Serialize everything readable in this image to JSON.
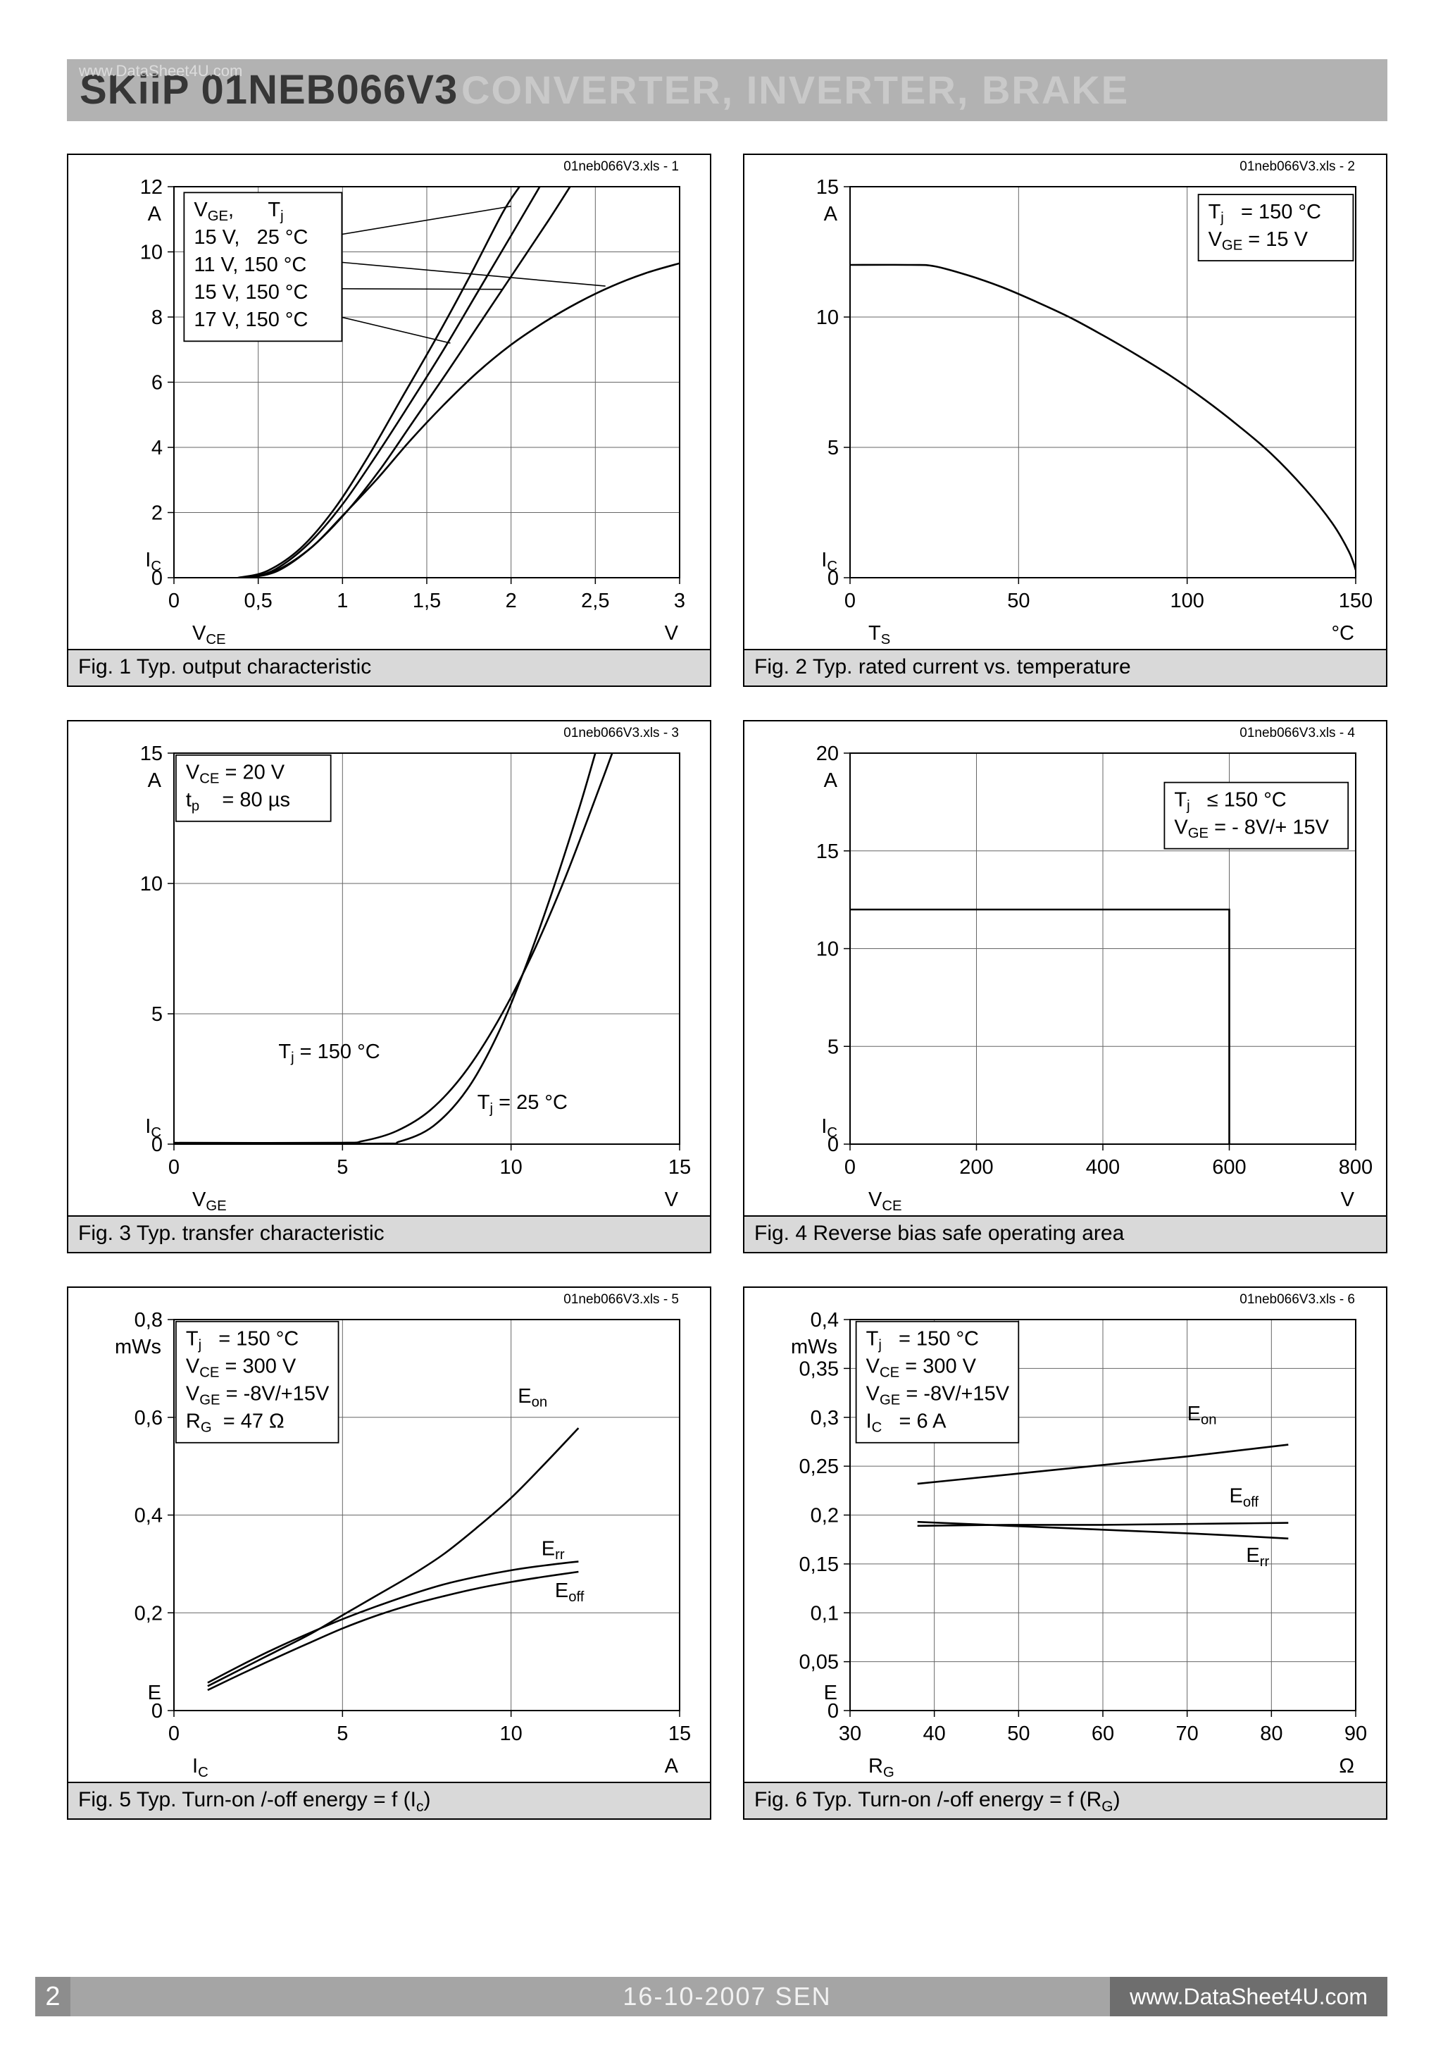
{
  "header": {
    "title": "SKiiP 01NEB066V3",
    "subtitle": "CONVERTER, INVERTER, BRAKE"
  },
  "watermark": "www.DataSheet4U.com",
  "footer": {
    "page_number": "2",
    "date": "16-10-2007  SEN",
    "site": "www.DataSheet4U.com"
  },
  "chart_data": [
    {
      "type": "line",
      "file_label": "01neb066V3.xls - 1",
      "caption": "Fig. 1 Typ. output characteristic",
      "x": {
        "name": "V~CE~",
        "unit": "V",
        "min": 0,
        "max": 3,
        "ticks": [
          0,
          0.5,
          1,
          1.5,
          2,
          2.5,
          3
        ],
        "tick_labels": [
          "0",
          "0,5",
          "1",
          "1,5",
          "2",
          "2,5",
          "3"
        ]
      },
      "y": {
        "name": "I~C~",
        "unit": "A",
        "min": 0,
        "max": 12,
        "ticks": [
          0,
          2,
          4,
          6,
          8,
          10,
          12
        ],
        "tick_labels": [
          "0",
          "2",
          "4",
          "6",
          "8",
          "10",
          "12"
        ]
      },
      "grid": true,
      "info_box": {
        "align": "left",
        "fx": 0.02,
        "fy": 0.015,
        "lines": [
          "V~GE~,      T~j~",
          "15 V,   25 °C",
          "11 V, 150 °C",
          "15 V, 150 °C",
          "17 V, 150 °C"
        ]
      },
      "pointer_lines": [
        {
          "x1": 0.95,
          "y1": 10.5,
          "x2": 2.0,
          "y2": 11.4
        },
        {
          "x1": 0.95,
          "y1": 9.7,
          "x2": 2.56,
          "y2": 8.95
        },
        {
          "x1": 0.95,
          "y1": 8.87,
          "x2": 1.95,
          "y2": 8.85
        },
        {
          "x1": 0.95,
          "y1": 8.05,
          "x2": 1.64,
          "y2": 7.2
        }
      ],
      "series": [
        {
          "name": "15 V, 25 °C",
          "points": [
            [
              0.38,
              0
            ],
            [
              0.55,
              0.2
            ],
            [
              0.75,
              0.9
            ],
            [
              0.95,
              2.1
            ],
            [
              1.15,
              3.7
            ],
            [
              1.35,
              5.5
            ],
            [
              1.55,
              7.3
            ],
            [
              1.75,
              9.2
            ],
            [
              1.95,
              11.2
            ],
            [
              2.05,
              12
            ]
          ]
        },
        {
          "name": "11 V, 150 °C",
          "points": [
            [
              0.45,
              0
            ],
            [
              0.62,
              0.25
            ],
            [
              0.82,
              0.95
            ],
            [
              1.0,
              1.9
            ],
            [
              1.2,
              3.0
            ],
            [
              1.4,
              4.2
            ],
            [
              1.6,
              5.3
            ],
            [
              1.8,
              6.3
            ],
            [
              2.0,
              7.15
            ],
            [
              2.2,
              7.85
            ],
            [
              2.4,
              8.45
            ],
            [
              2.6,
              8.95
            ],
            [
              2.8,
              9.35
            ],
            [
              3.0,
              9.65
            ]
          ]
        },
        {
          "name": "15 V, 150 °C",
          "points": [
            [
              0.45,
              0
            ],
            [
              0.62,
              0.22
            ],
            [
              0.82,
              0.95
            ],
            [
              1.02,
              2.0
            ],
            [
              1.22,
              3.3
            ],
            [
              1.42,
              4.8
            ],
            [
              1.62,
              6.3
            ],
            [
              1.82,
              7.85
            ],
            [
              2.02,
              9.4
            ],
            [
              2.22,
              10.95
            ],
            [
              2.35,
              12
            ]
          ]
        },
        {
          "name": "17 V, 150 °C",
          "points": [
            [
              0.45,
              0
            ],
            [
              0.6,
              0.25
            ],
            [
              0.8,
              1.05
            ],
            [
              1.0,
              2.25
            ],
            [
              1.2,
              3.75
            ],
            [
              1.4,
              5.35
            ],
            [
              1.6,
              7.0
            ],
            [
              1.8,
              8.75
            ],
            [
              2.0,
              10.5
            ],
            [
              2.17,
              12
            ]
          ]
        }
      ],
      "curve_labels": []
    },
    {
      "type": "line",
      "file_label": "01neb066V3.xls - 2",
      "caption": "Fig. 2 Typ. rated current vs. temperature",
      "x": {
        "name": "T~S~",
        "unit": "°C",
        "min": 0,
        "max": 150,
        "ticks": [
          0,
          50,
          100,
          150
        ],
        "tick_labels": [
          "0",
          "50",
          "100",
          "150"
        ]
      },
      "y": {
        "name": "I~C~",
        "unit": "A",
        "min": 0,
        "max": 15,
        "ticks": [
          0,
          5,
          10,
          15
        ],
        "tick_labels": [
          "0",
          "5",
          "10",
          "15"
        ]
      },
      "grid": true,
      "info_box": {
        "align": "right",
        "fx": 0.995,
        "fy": 0.02,
        "lines": [
          "T~j~   = 150 °C",
          "V~GE~ = 15 V"
        ]
      },
      "pointer_lines": [],
      "series": [
        {
          "name": "rated current",
          "points": [
            [
              0,
              12
            ],
            [
              18,
              12
            ],
            [
              25,
              11.95
            ],
            [
              35,
              11.6
            ],
            [
              45,
              11.15
            ],
            [
              55,
              10.6
            ],
            [
              65,
              10.0
            ],
            [
              75,
              9.3
            ],
            [
              85,
              8.55
            ],
            [
              95,
              7.75
            ],
            [
              105,
              6.85
            ],
            [
              115,
              5.85
            ],
            [
              125,
              4.75
            ],
            [
              135,
              3.4
            ],
            [
              143,
              2.1
            ],
            [
              148,
              1.0
            ],
            [
              150,
              0.3
            ]
          ]
        }
      ],
      "curve_labels": []
    },
    {
      "type": "line",
      "file_label": "01neb066V3.xls - 3",
      "caption": "Fig. 3 Typ. transfer characteristic",
      "x": {
        "name": "V~GE~",
        "unit": "V",
        "min": 0,
        "max": 15,
        "ticks": [
          0,
          5,
          10,
          15
        ],
        "tick_labels": [
          "0",
          "5",
          "10",
          "15"
        ]
      },
      "y": {
        "name": "I~C~",
        "unit": "A",
        "min": 0,
        "max": 15,
        "ticks": [
          0,
          5,
          10,
          15
        ],
        "tick_labels": [
          "0",
          "5",
          "10",
          "15"
        ]
      },
      "grid": true,
      "info_box": {
        "align": "left",
        "fx": 0.004,
        "fy": 0.005,
        "lines": [
          "V~CE~ = 20 V",
          "t~p~    = 80 µs"
        ]
      },
      "pointer_lines": [],
      "series": [
        {
          "name": "Tj = 150 °C",
          "points": [
            [
              0,
              0.05
            ],
            [
              4.8,
              0.05
            ],
            [
              5.6,
              0.12
            ],
            [
              6.6,
              0.5
            ],
            [
              7.6,
              1.3
            ],
            [
              8.6,
              2.7
            ],
            [
              9.6,
              4.7
            ],
            [
              10.6,
              7.2
            ],
            [
              11.6,
              10.2
            ],
            [
              12.6,
              13.6
            ],
            [
              13.0,
              15
            ]
          ]
        },
        {
          "name": "Tj = 25 °C",
          "points": [
            [
              0,
              0.02
            ],
            [
              5.9,
              0.02
            ],
            [
              6.7,
              0.1
            ],
            [
              7.7,
              0.7
            ],
            [
              8.7,
              2.1
            ],
            [
              9.6,
              4.2
            ],
            [
              10.4,
              6.7
            ],
            [
              11.2,
              9.6
            ],
            [
              12.0,
              12.8
            ],
            [
              12.5,
              15
            ]
          ]
        }
      ],
      "curve_labels": [
        {
          "text": "T~j~ = 150 °C",
          "x": 3.1,
          "y": 3.3,
          "anchor": "start"
        },
        {
          "text": "T~j~ = 25 °C",
          "x": 9.0,
          "y": 1.35,
          "anchor": "start"
        }
      ]
    },
    {
      "type": "line",
      "file_label": "01neb066V3.xls - 4",
      "caption": "Fig. 4 Reverse bias safe operating area",
      "x": {
        "name": "V~CE~",
        "unit": "V",
        "min": 0,
        "max": 800,
        "ticks": [
          0,
          200,
          400,
          600,
          800
        ],
        "tick_labels": [
          "0",
          "200",
          "400",
          "600",
          "800"
        ]
      },
      "y": {
        "name": "I~C~",
        "unit": "A",
        "min": 0,
        "max": 20,
        "ticks": [
          0,
          5,
          10,
          15,
          20
        ],
        "tick_labels": [
          "0",
          "5",
          "10",
          "15",
          "20"
        ]
      },
      "grid": true,
      "info_box": {
        "align": "right",
        "fx": 0.985,
        "fy": 0.075,
        "lines": [
          "T~j~   ≤ 150 °C",
          "V~GE~ = - 8V/+ 15V"
        ]
      },
      "pointer_lines": [],
      "series": [
        {
          "name": "RBSOA",
          "smooth": false,
          "points": [
            [
              0,
              12
            ],
            [
              600,
              12
            ],
            [
              600,
              0
            ]
          ]
        }
      ],
      "curve_labels": []
    },
    {
      "type": "line",
      "file_label": "01neb066V3.xls - 5",
      "caption": "Fig. 5 Typ. Turn-on /-off energy = f (I~c~)",
      "x": {
        "name": "I~C~",
        "unit": "A",
        "min": 0,
        "max": 15,
        "ticks": [
          0,
          5,
          10,
          15
        ],
        "tick_labels": [
          "0",
          "5",
          "10",
          "15"
        ]
      },
      "y": {
        "name": "E",
        "unit": "mWs",
        "min": 0,
        "max": 0.8,
        "ticks": [
          0,
          0.2,
          0.4,
          0.6,
          0.8
        ],
        "tick_labels": [
          "0",
          "0,2",
          "0,4",
          "0,6",
          "0,8"
        ]
      },
      "grid": true,
      "info_box": {
        "align": "left",
        "fx": 0.004,
        "fy": 0.005,
        "lines": [
          "T~j~   = 150 °C",
          "V~CE~ = 300 V",
          "V~GE~ = -8V/+15V",
          "R~G~  = 47 Ω"
        ]
      },
      "pointer_lines": [],
      "series": [
        {
          "name": "Eon",
          "points": [
            [
              1,
              0.05
            ],
            [
              2,
              0.085
            ],
            [
              3,
              0.12
            ],
            [
              4,
              0.155
            ],
            [
              5,
              0.195
            ],
            [
              6,
              0.235
            ],
            [
              7,
              0.275
            ],
            [
              8,
              0.32
            ],
            [
              9,
              0.375
            ],
            [
              10,
              0.435
            ],
            [
              11,
              0.505
            ],
            [
              12,
              0.578
            ]
          ]
        },
        {
          "name": "Err",
          "points": [
            [
              1,
              0.057
            ],
            [
              2,
              0.093
            ],
            [
              3,
              0.127
            ],
            [
              4,
              0.158
            ],
            [
              5,
              0.187
            ],
            [
              6,
              0.213
            ],
            [
              7,
              0.237
            ],
            [
              8,
              0.258
            ],
            [
              9,
              0.274
            ],
            [
              10,
              0.287
            ],
            [
              11,
              0.297
            ],
            [
              12,
              0.305
            ]
          ]
        },
        {
          "name": "Eoff",
          "points": [
            [
              1,
              0.042
            ],
            [
              2,
              0.075
            ],
            [
              3,
              0.107
            ],
            [
              4,
              0.138
            ],
            [
              5,
              0.168
            ],
            [
              6,
              0.194
            ],
            [
              7,
              0.216
            ],
            [
              8,
              0.234
            ],
            [
              9,
              0.25
            ],
            [
              10,
              0.263
            ],
            [
              11,
              0.274
            ],
            [
              12,
              0.284
            ]
          ]
        }
      ],
      "curve_labels": [
        {
          "text": "E~on~",
          "x": 10.2,
          "y": 0.63,
          "anchor": "start"
        },
        {
          "text": "E~rr~",
          "x": 10.9,
          "y": 0.318,
          "anchor": "start"
        },
        {
          "text": "E~off~",
          "x": 11.3,
          "y": 0.232,
          "anchor": "start"
        }
      ]
    },
    {
      "type": "line",
      "file_label": "01neb066V3.xls - 6",
      "caption": "Fig. 6 Typ. Turn-on /-off energy = f (R~G~)",
      "x": {
        "name": "R~G~",
        "unit": "Ω",
        "min": 30,
        "max": 90,
        "ticks": [
          30,
          40,
          50,
          60,
          70,
          80,
          90
        ],
        "tick_labels": [
          "30",
          "40",
          "50",
          "60",
          "70",
          "80",
          "90"
        ]
      },
      "y": {
        "name": "E",
        "unit": "mWs",
        "min": 0,
        "max": 0.4,
        "ticks": [
          0,
          0.05,
          0.1,
          0.15,
          0.2,
          0.25,
          0.3,
          0.35,
          0.4
        ],
        "tick_labels": [
          "0",
          "0,05",
          "0,1",
          "0,15",
          "0,2",
          "0,25",
          "0,3",
          "0,35",
          "0,4"
        ]
      },
      "grid": true,
      "info_box": {
        "align": "left",
        "fx": 0.012,
        "fy": 0.005,
        "lines": [
          "T~j~   = 150 °C",
          "V~CE~ = 300 V",
          "V~GE~ = -8V/+15V",
          "I~C~   = 6 A"
        ]
      },
      "pointer_lines": [],
      "series": [
        {
          "name": "Eon",
          "points": [
            [
              38,
              0.232
            ],
            [
              46,
              0.239
            ],
            [
              54,
              0.246
            ],
            [
              62,
              0.253
            ],
            [
              70,
              0.26
            ],
            [
              76,
              0.266
            ],
            [
              82,
              0.272
            ]
          ]
        },
        {
          "name": "Eoff",
          "points": [
            [
              38,
              0.189
            ],
            [
              49,
              0.19
            ],
            [
              60,
              0.19
            ],
            [
              71,
              0.191
            ],
            [
              82,
              0.192
            ]
          ]
        },
        {
          "name": "Err",
          "points": [
            [
              38,
              0.193
            ],
            [
              49,
              0.189
            ],
            [
              60,
              0.185
            ],
            [
              71,
              0.181
            ],
            [
              82,
              0.176
            ]
          ]
        }
      ],
      "curve_labels": [
        {
          "text": "E~on~",
          "x": 70,
          "y": 0.297,
          "anchor": "start"
        },
        {
          "text": "E~off~",
          "x": 75,
          "y": 0.213,
          "anchor": "start"
        },
        {
          "text": "E~rr~",
          "x": 77,
          "y": 0.152,
          "anchor": "start"
        }
      ]
    }
  ]
}
